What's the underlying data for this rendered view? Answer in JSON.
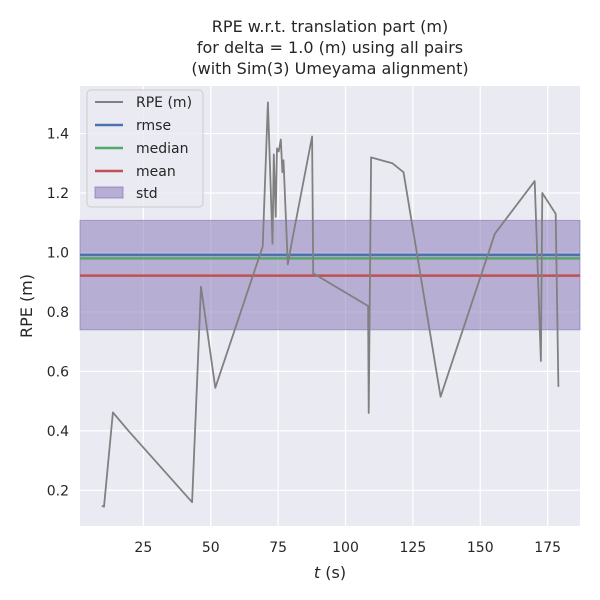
{
  "chart_data": {
    "type": "line",
    "title": [
      "RPE w.r.t. translation part (m)",
      "for delta = 1.0 (m) using all pairs",
      "(with Sim(3) Umeyama alignment)"
    ],
    "xlabel_italic": "t",
    "xlabel_rest": " (s)",
    "ylabel": "RPE (m)",
    "xlim": [
      1.5,
      187
    ],
    "ylim": [
      0.08,
      1.56
    ],
    "xticks": [
      25,
      50,
      75,
      100,
      125,
      150,
      175
    ],
    "yticks": [
      0.2,
      0.4,
      0.6,
      0.8,
      1.0,
      1.2,
      1.4
    ],
    "ytick_labels": [
      "0.2",
      "0.4",
      "0.6",
      "0.8",
      "1.0",
      "1.2",
      "1.4"
    ],
    "grid": true,
    "legend_placement": "top-left",
    "series": [
      {
        "name": "RPE (m)",
        "color": "#808080",
        "x": [
          9.6,
          10.4,
          13.7,
          19.3,
          43.1,
          46.4,
          51.7,
          69.3,
          71.2,
          72.9,
          73.4,
          74.1,
          74.6,
          75.2,
          76.0,
          76.6,
          77.0,
          78.6,
          80.2,
          87.6,
          88.0,
          108.4,
          108.6,
          109.5,
          117.4,
          121.5,
          135.3,
          155.4,
          170.2,
          172.5,
          173.0,
          178.0,
          179.0
        ],
        "y": [
          0.148,
          0.145,
          0.462,
          0.402,
          0.16,
          0.885,
          0.545,
          1.02,
          1.505,
          1.03,
          1.33,
          1.12,
          1.35,
          1.34,
          1.38,
          1.27,
          1.31,
          0.96,
          1.04,
          1.39,
          0.93,
          0.82,
          0.46,
          1.32,
          1.3,
          1.27,
          0.515,
          1.063,
          1.24,
          0.635,
          1.2,
          1.13,
          0.548
        ]
      },
      {
        "name": "rmse",
        "color": "#4c72b0",
        "value": 0.992
      },
      {
        "name": "median",
        "color": "#55a868",
        "value": 0.98
      },
      {
        "name": "mean",
        "color": "#c44e52",
        "value": 0.922
      }
    ],
    "std_band": {
      "name": "std",
      "color": "#8172b3",
      "low": 0.74,
      "high": 1.108
    },
    "legend_entries": [
      "RPE (m)",
      "rmse",
      "median",
      "mean",
      "std"
    ]
  }
}
